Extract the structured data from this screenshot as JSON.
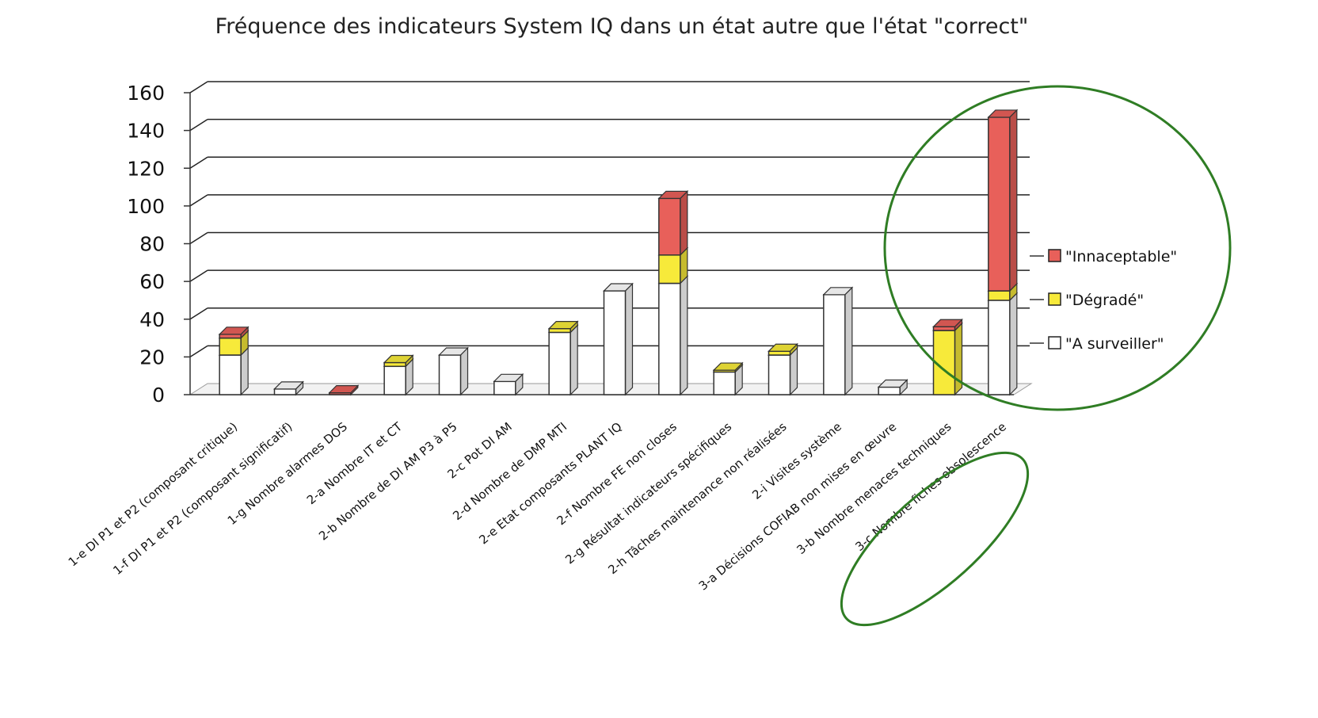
{
  "chart_data": {
    "type": "bar",
    "stacked": true,
    "title": "Fréquence des indicateurs System IQ dans un état autre que l'état \"correct\"",
    "xlabel": "",
    "ylabel": "",
    "ylim": [
      0,
      160
    ],
    "yticks": [
      "0",
      "20",
      "40",
      "60",
      "80",
      "100",
      "120",
      "140",
      "160"
    ],
    "grid": true,
    "legend_position": "right",
    "categories": [
      "1-e DI P1 et P2 (composant critique)",
      "1-f DI P1 et P2 (composant significatif)",
      "1-g Nombre alarmes DOS",
      "2-a Nombre IT et CT",
      "2-b Nombre de DI AM P3 à P5",
      "2-c Pot DI AM",
      "2-d Nombre de DMP MTI",
      "2-e Etat composants PLANT IQ",
      "2-f Nombre FE non closes",
      "2-g Résultat indicateurs spécifiques",
      "2-h Tâches maintenance non réalisées",
      "2-i Visites système",
      "3-a Décisions COFIAB non mises en œuvre",
      "3-b Nombre menaces techniques",
      "3-c Nombre fiches obsolescence"
    ],
    "series": [
      {
        "name": "\"A surveiller\"",
        "color": "#ffffff",
        "values": [
          21,
          3,
          0,
          15,
          21,
          7,
          33,
          55,
          59,
          12,
          21,
          53,
          4,
          0,
          50
        ]
      },
      {
        "name": "\"Dégradé\"",
        "color": "#f7ea3a",
        "values": [
          9,
          0,
          0,
          2,
          0,
          0,
          2,
          0,
          15,
          1,
          2,
          0,
          0,
          34,
          5
        ]
      },
      {
        "name": "\"Innaceptable\"",
        "color": "#e8605a",
        "values": [
          2,
          0,
          1,
          0,
          0,
          0,
          0,
          0,
          30,
          0,
          0,
          0,
          0,
          2,
          92
        ]
      }
    ]
  }
}
